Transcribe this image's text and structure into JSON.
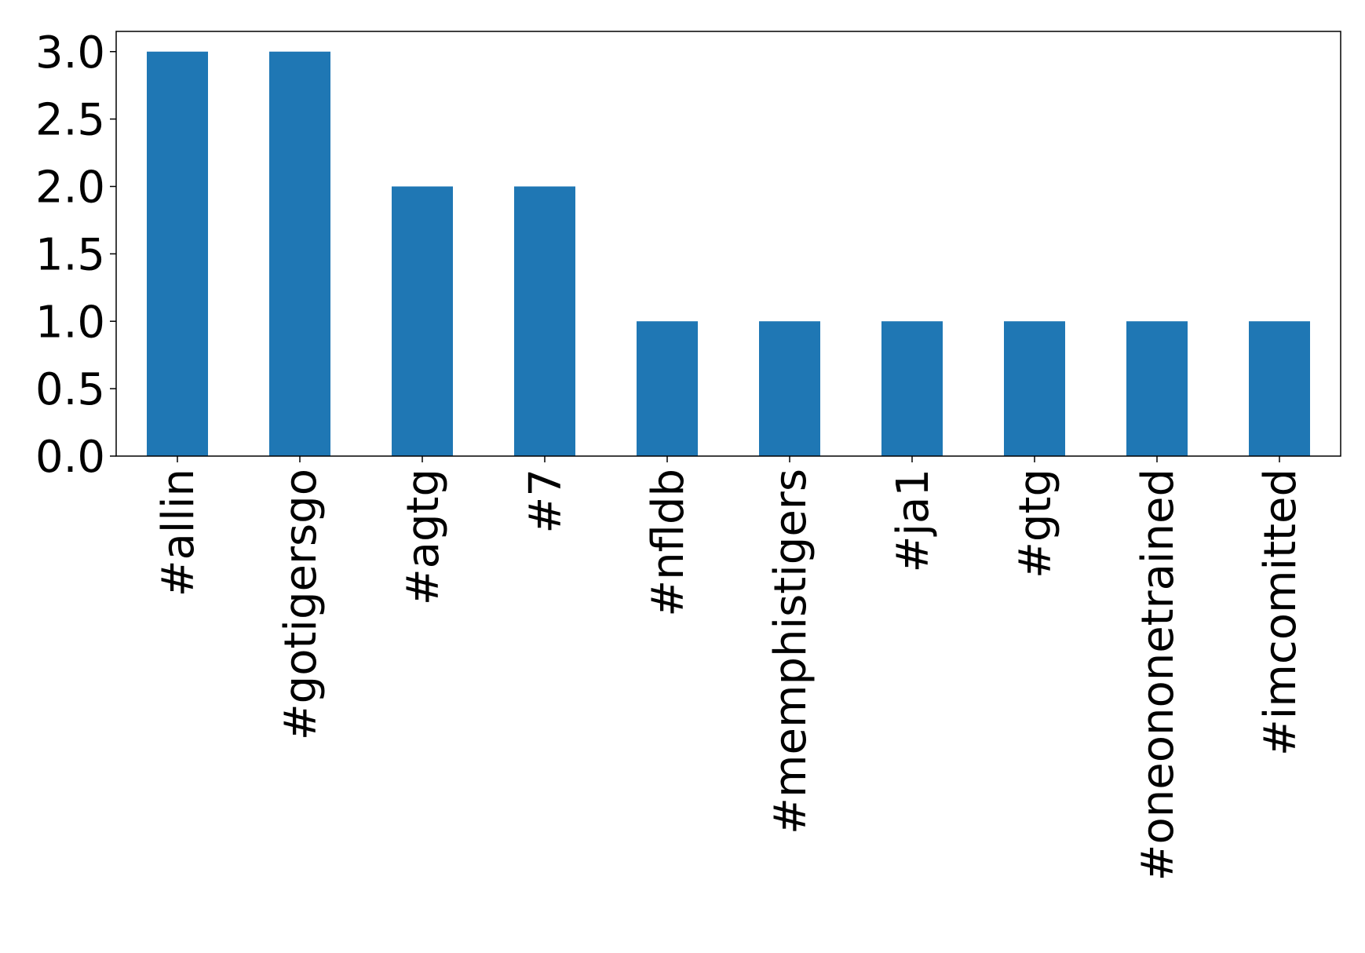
{
  "chart_data": {
    "type": "bar",
    "categories": [
      "#allin",
      "#gotigersgo",
      "#agtg",
      "#7",
      "#nfldb",
      "#memphistigers",
      "#ja1",
      "#gtg",
      "#oneononetrained",
      "#imcomitted"
    ],
    "values": [
      3,
      3,
      2,
      2,
      1,
      1,
      1,
      1,
      1,
      1
    ],
    "color": "#1f77b4",
    "ylim": [
      0,
      3.15
    ],
    "yticks": [
      {
        "value": 0,
        "label": "0.0"
      },
      0.5,
      {
        "value": 1,
        "label": "1.0"
      },
      1.5,
      {
        "value": 2,
        "label": "2.0"
      },
      2.5,
      {
        "value": 3,
        "label": "3.0"
      }
    ],
    "grid": false
  }
}
